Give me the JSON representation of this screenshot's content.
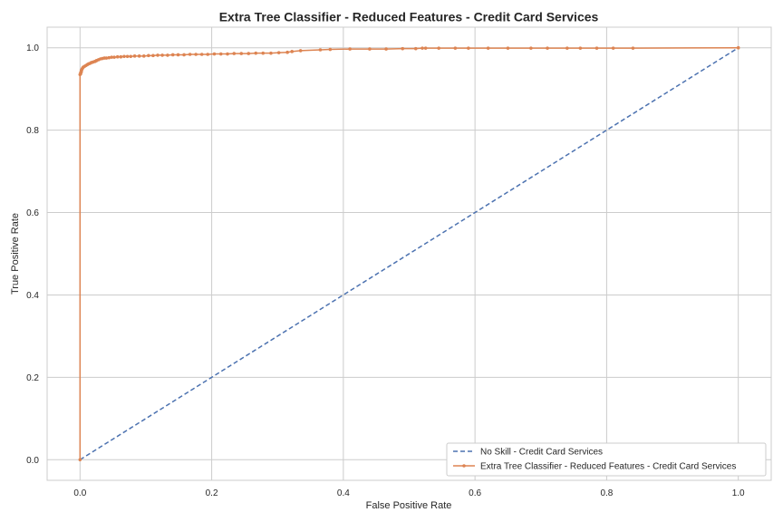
{
  "chart_data": {
    "type": "line",
    "title": "Extra Tree Classifier - Reduced Features - Credit Card Services",
    "xlabel": "False Positive Rate",
    "ylabel": "True Positive Rate",
    "xlim": [
      -0.05,
      1.05
    ],
    "ylim": [
      -0.05,
      1.05
    ],
    "xticks": [
      "0.0",
      "0.2",
      "0.4",
      "0.6",
      "0.8",
      "1.0"
    ],
    "yticks": [
      "0.0",
      "0.2",
      "0.4",
      "0.6",
      "0.8",
      "1.0"
    ],
    "grid": true,
    "legend_position": "lower-right",
    "series": [
      {
        "name": "No Skill - Credit Card Services",
        "style": "dashed",
        "color": "#4c72b0",
        "marker": false,
        "x": [
          0,
          1
        ],
        "y": [
          0,
          1
        ]
      },
      {
        "name": "Extra Tree Classifier - Reduced Features - Credit Card Services",
        "style": "solid",
        "color": "#dd8452",
        "marker": true,
        "x": [
          0,
          0,
          0.001,
          0.001,
          0.002,
          0.002,
          0.003,
          0.004,
          0.005,
          0.007,
          0.009,
          0.011,
          0.013,
          0.015,
          0.017,
          0.019,
          0.021,
          0.023,
          0.025,
          0.028,
          0.031,
          0.034,
          0.037,
          0.04,
          0.044,
          0.048,
          0.052,
          0.057,
          0.062,
          0.067,
          0.072,
          0.077,
          0.083,
          0.09,
          0.097,
          0.104,
          0.111,
          0.118,
          0.125,
          0.133,
          0.141,
          0.149,
          0.158,
          0.167,
          0.176,
          0.185,
          0.194,
          0.204,
          0.214,
          0.224,
          0.234,
          0.245,
          0.256,
          0.267,
          0.278,
          0.29,
          0.302,
          0.315,
          0.322,
          0.335,
          0.365,
          0.38,
          0.41,
          0.44,
          0.465,
          0.49,
          0.51,
          0.52,
          0.525,
          0.545,
          0.57,
          0.59,
          0.62,
          0.65,
          0.685,
          0.71,
          0.74,
          0.76,
          0.785,
          0.81,
          0.84,
          1.0
        ],
        "y": [
          0,
          0.935,
          0.937,
          0.94,
          0.942,
          0.945,
          0.948,
          0.951,
          0.953,
          0.955,
          0.957,
          0.959,
          0.961,
          0.962,
          0.964,
          0.965,
          0.966,
          0.967,
          0.969,
          0.971,
          0.973,
          0.974,
          0.975,
          0.975,
          0.976,
          0.977,
          0.977,
          0.978,
          0.978,
          0.979,
          0.979,
          0.979,
          0.98,
          0.98,
          0.98,
          0.981,
          0.981,
          0.982,
          0.982,
          0.982,
          0.983,
          0.983,
          0.983,
          0.984,
          0.984,
          0.984,
          0.984,
          0.985,
          0.985,
          0.985,
          0.986,
          0.986,
          0.986,
          0.987,
          0.987,
          0.987,
          0.988,
          0.989,
          0.991,
          0.993,
          0.995,
          0.996,
          0.997,
          0.997,
          0.997,
          0.998,
          0.998,
          0.999,
          0.999,
          0.999,
          0.999,
          0.999,
          0.999,
          0.999,
          0.999,
          0.999,
          0.999,
          0.999,
          0.999,
          0.999,
          0.999,
          1.0
        ]
      }
    ]
  }
}
